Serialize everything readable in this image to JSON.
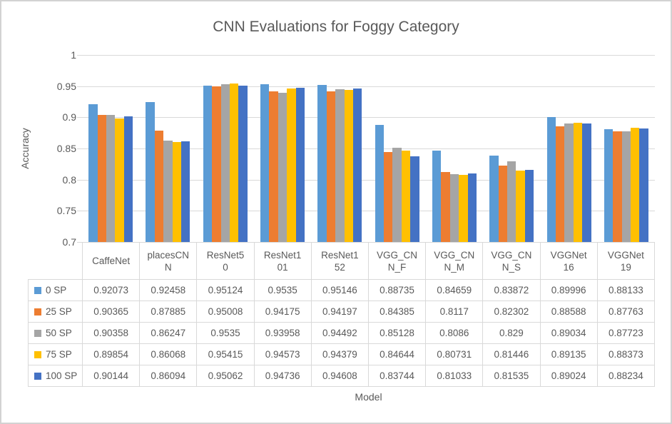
{
  "chart_data": {
    "type": "bar",
    "title": "CNN Evaluations for Foggy Category",
    "xlabel": "Model",
    "ylabel": "Accuracy",
    "ylim": [
      0.7,
      1
    ],
    "ytick_labels": [
      "1",
      "0.95",
      "0.9",
      "0.85",
      "0.8",
      "0.75",
      "0.7"
    ],
    "grid": true,
    "legend_position": "table-left-column",
    "text_color": "#595959",
    "grid_color": "#D9D9D9",
    "categories": [
      "CaffeNet",
      "placesCNN",
      "ResNet50",
      "ResNet101",
      "ResNet152",
      "VGG_CNN_F",
      "VGG_CNN_M",
      "VGG_CNN_S",
      "VGGNet16",
      "VGGNet19"
    ],
    "categories_display": [
      "CaffeNet",
      "placesCN\nN",
      "ResNet5\n0",
      "ResNet1\n01",
      "ResNet1\n52",
      "VGG_CN\nN_F",
      "VGG_CN\nN_M",
      "VGG_CN\nN_S",
      "VGGNet\n16",
      "VGGNet\n19"
    ],
    "series": [
      {
        "name": "0 SP",
        "color": "#5B9BD5",
        "values": [
          "0.92073",
          "0.92458",
          "0.95124",
          "0.9535",
          "0.95146",
          "0.88735",
          "0.84659",
          "0.83872",
          "0.89996",
          "0.88133"
        ]
      },
      {
        "name": "25 SP",
        "color": "#ED7D31",
        "values": [
          "0.90365",
          "0.87885",
          "0.95008",
          "0.94175",
          "0.94197",
          "0.84385",
          "0.8117",
          "0.82302",
          "0.88588",
          "0.87763"
        ]
      },
      {
        "name": "50 SP",
        "color": "#A5A5A5",
        "values": [
          "0.90358",
          "0.86247",
          "0.9535",
          "0.93958",
          "0.94492",
          "0.85128",
          "0.8086",
          "0.829",
          "0.89034",
          "0.87723"
        ]
      },
      {
        "name": "75 SP",
        "color": "#FFC000",
        "values": [
          "0.89854",
          "0.86068",
          "0.95415",
          "0.94573",
          "0.94379",
          "0.84644",
          "0.80731",
          "0.81446",
          "0.89135",
          "0.88373"
        ]
      },
      {
        "name": "100 SP",
        "color": "#4472C4",
        "values": [
          "0.90144",
          "0.86094",
          "0.95062",
          "0.94736",
          "0.94608",
          "0.83744",
          "0.81033",
          "0.81535",
          "0.89024",
          "0.88234"
        ]
      }
    ]
  }
}
